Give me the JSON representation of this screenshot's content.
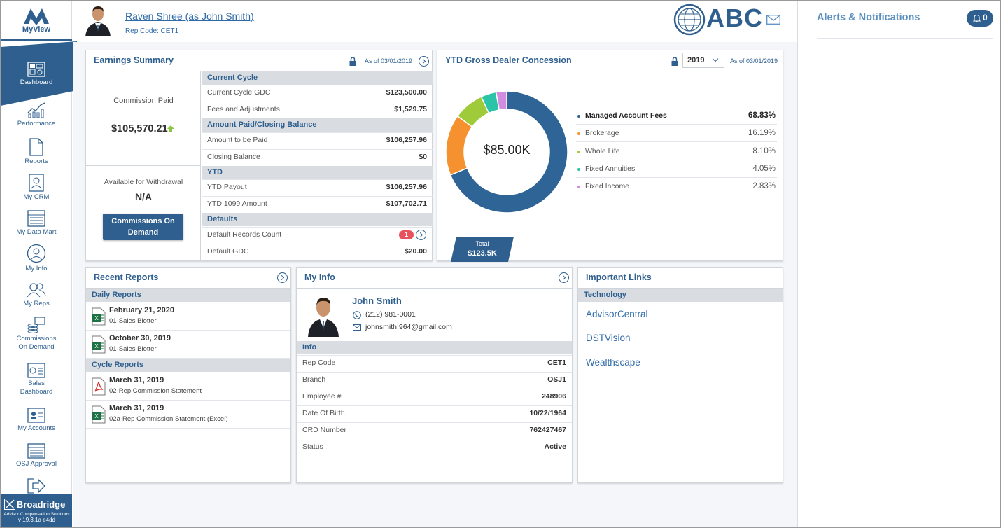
{
  "app": {
    "name": "MyView"
  },
  "sidebar": {
    "items": [
      {
        "label": "Dashboard",
        "icon": "dashboard-icon"
      },
      {
        "label": "Performance",
        "icon": "performance-chart-icon"
      },
      {
        "label": "Reports",
        "icon": "reports-document-icon"
      },
      {
        "label": "My CRM",
        "icon": "crm-contact-icon"
      },
      {
        "label": "My Data Mart",
        "icon": "data-mart-icon"
      },
      {
        "label": "My Info",
        "icon": "my-info-user-icon"
      },
      {
        "label": "My Reps",
        "icon": "my-reps-users-icon"
      },
      {
        "label": "Commissions On Demand",
        "icon": "commissions-coins-icon"
      },
      {
        "label": "Sales Dashboard",
        "icon": "sales-dashboard-icon"
      },
      {
        "label": "My Accounts",
        "icon": "accounts-card-icon"
      },
      {
        "label": "OSJ Approval",
        "icon": "osj-approval-icon"
      },
      {
        "label": "",
        "icon": "logout-arrow-icon"
      }
    ],
    "footer": {
      "brand": "Broadridge",
      "line1": "Advisor Compensation Solutions",
      "line2": "v 19.3.1a e4dd"
    }
  },
  "header": {
    "user_name": "Raven Shree (as John Smith)",
    "rep_code": "Rep Code: CET1",
    "brand": "ABC"
  },
  "alerts": {
    "title": "Alerts & Notifications",
    "count": "0"
  },
  "earnings": {
    "title": "Earnings Summary",
    "as_of": "As of 03/01/2019",
    "commission_paid_label": "Commission Paid",
    "commission_paid_value": "$105,570.21",
    "withdrawal_label": "Available for Withdrawal",
    "withdrawal_value": "N/A",
    "cod_button": "Commissions On Demand",
    "sections": [
      {
        "title": "Current Cycle",
        "rows": [
          {
            "label": "Current Cycle GDC",
            "value": "$123,500.00"
          },
          {
            "label": "Fees and Adjustments",
            "value": "$1,529.75"
          }
        ]
      },
      {
        "title": "Amount Paid/Closing Balance",
        "rows": [
          {
            "label": "Amount to be Paid",
            "value": "$106,257.96"
          },
          {
            "label": "Closing Balance",
            "value": "$0"
          }
        ]
      },
      {
        "title": "YTD",
        "rows": [
          {
            "label": "YTD Payout",
            "value": "$106,257.96"
          },
          {
            "label": "YTD 1099 Amount",
            "value": "$107,702.71"
          }
        ]
      },
      {
        "title": "Defaults",
        "rows": [
          {
            "label": "Default Records Count",
            "value": "1"
          },
          {
            "label": "Default GDC",
            "value": "$20.00"
          }
        ]
      }
    ]
  },
  "ytd": {
    "title": "YTD Gross Dealer Concession",
    "year": "2019",
    "as_of": "As of 03/01/2019",
    "center_value": "$85.00K",
    "total_label": "Total",
    "total_value": "$123.5K"
  },
  "chart_data": {
    "type": "pie",
    "categories": [
      "Managed Account Fees",
      "Brokerage",
      "Whole Life",
      "Fixed Annuities",
      "Fixed Income"
    ],
    "values": [
      68.83,
      16.19,
      8.1,
      4.05,
      2.83
    ],
    "value_labels": [
      "68.83%",
      "16.19%",
      "8.10%",
      "4.05%",
      "2.83%"
    ],
    "colors": [
      "#2e6496",
      "#f5922f",
      "#9fcb3b",
      "#2cc4a8",
      "#d18ce0"
    ]
  },
  "recent_reports": {
    "title": "Recent Reports",
    "daily_title": "Daily Reports",
    "cycle_title": "Cycle Reports",
    "daily": [
      {
        "date": "February 21, 2020",
        "name": "01-Sales Blotter",
        "icon": "excel-file-icon"
      },
      {
        "date": "October 30, 2019",
        "name": "01-Sales Blotter",
        "icon": "excel-file-icon"
      }
    ],
    "cycle": [
      {
        "date": "March 31, 2019",
        "name": "02-Rep Commission Statement",
        "icon": "pdf-file-icon"
      },
      {
        "date": "March 31, 2019",
        "name": "02a-Rep Commission Statement (Excel)",
        "icon": "excel-file-icon"
      }
    ]
  },
  "my_info": {
    "title": "My Info",
    "name": "John Smith",
    "phone": "(212) 981-0001",
    "email": "johnsmith!964@gmail.com",
    "info_title": "Info",
    "rows": [
      {
        "label": "Rep Code",
        "value": "CET1"
      },
      {
        "label": "Branch",
        "value": "OSJ1"
      },
      {
        "label": "Employee #",
        "value": "248906"
      },
      {
        "label": "Date Of Birth",
        "value": "10/22/1964"
      },
      {
        "label": "CRD Number",
        "value": "762427467"
      },
      {
        "label": "Status",
        "value": "Active"
      }
    ]
  },
  "links": {
    "title": "Important Links",
    "section": "Technology",
    "items": [
      "AdvisorCentral",
      "DSTVision",
      "Wealthscape"
    ]
  }
}
